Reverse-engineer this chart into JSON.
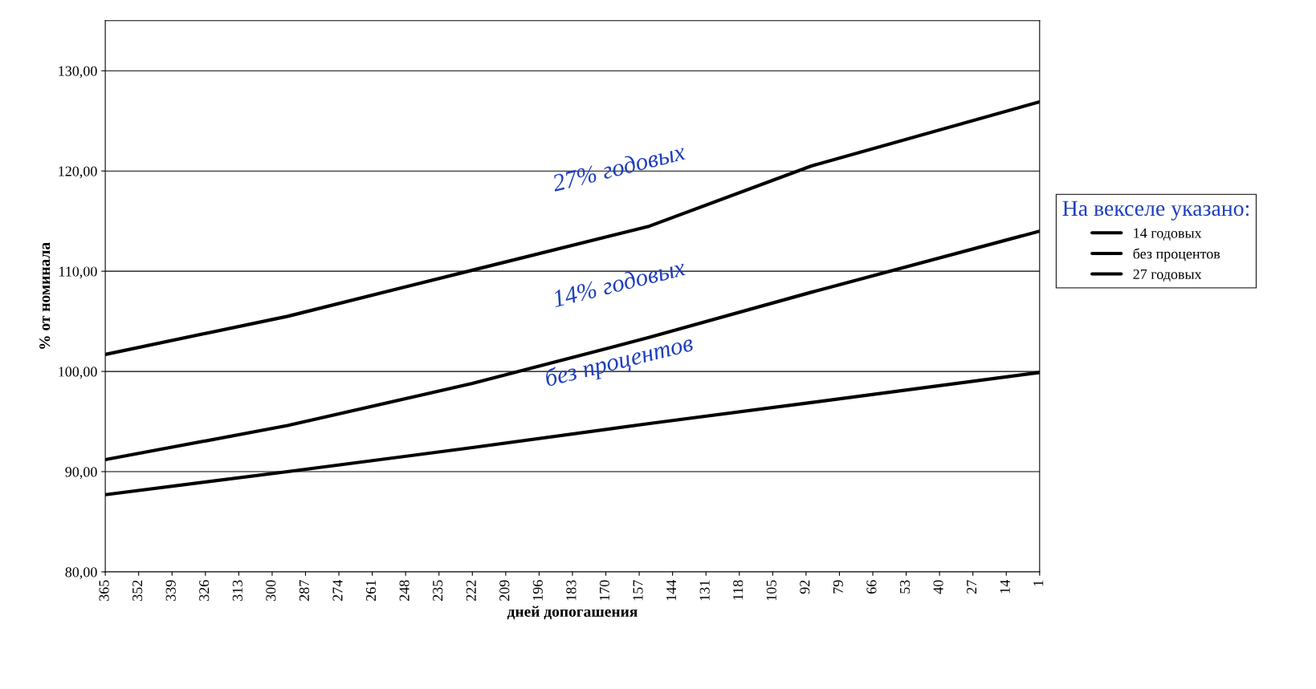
{
  "chart_data": {
    "type": "line",
    "xlabel": "дней допогашения",
    "ylabel": "% от номинала",
    "xlim": [
      365,
      1
    ],
    "xticks": [
      365,
      352,
      339,
      326,
      313,
      300,
      287,
      274,
      261,
      248,
      235,
      222,
      209,
      196,
      183,
      170,
      157,
      144,
      131,
      118,
      105,
      92,
      79,
      66,
      53,
      40,
      27,
      14,
      1
    ],
    "ylim": [
      80,
      135
    ],
    "yticks": [
      {
        "value": 80,
        "label": "80,00"
      },
      {
        "value": 90,
        "label": "90,00"
      },
      {
        "value": 100,
        "label": "100,00"
      },
      {
        "value": 110,
        "label": "110,00"
      },
      {
        "value": 120,
        "label": "120,00"
      },
      {
        "value": 130,
        "label": "130,00"
      }
    ],
    "grid": "y",
    "legend": "right",
    "legend_title": "На векселе указано:",
    "x": [
      365,
      294,
      222,
      153,
      90,
      1
    ],
    "series": [
      {
        "name": "14 годовых",
        "color": "#000000",
        "values": [
          91.2,
          94.6,
          98.8,
          103.4,
          107.9,
          114.0
        ]
      },
      {
        "name": "без процентов",
        "color": "#000000",
        "values": [
          87.7,
          90.0,
          92.4,
          94.8,
          96.9,
          99.9
        ]
      },
      {
        "name": "27 годовых",
        "color": "#000000",
        "values": [
          101.7,
          105.5,
          110.1,
          114.5,
          120.5,
          126.9
        ]
      }
    ],
    "annotations": [
      "27% годовых",
      "14% годовых",
      "без процентов"
    ]
  }
}
